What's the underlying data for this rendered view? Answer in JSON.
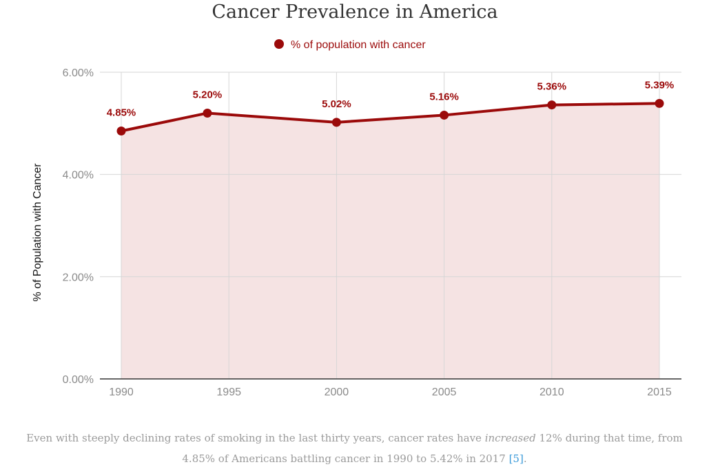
{
  "chart_data": {
    "type": "area",
    "title": "Cancer Prevalence in America",
    "ylabel": "% of Population with Cancer",
    "xlabel": "",
    "legend_position": "top",
    "grid": true,
    "x_tick_labels": [
      "1990",
      "1995",
      "2000",
      "2005",
      "2010",
      "2015"
    ],
    "x_ticks": [
      1990,
      1995,
      2000,
      2005,
      2010,
      2015
    ],
    "xlim": [
      1990,
      2015
    ],
    "y_tick_labels": [
      "0.00%",
      "2.00%",
      "4.00%",
      "6.00%"
    ],
    "y_ticks": [
      0,
      2,
      4,
      6
    ],
    "ylim": [
      0,
      6
    ],
    "series": [
      {
        "name": "% of population with cancer",
        "color": "#9b0a0a",
        "fill_color": "#f5e3e3",
        "x": [
          1990,
          1994,
          2000,
          2005,
          2010,
          2015
        ],
        "values": [
          4.85,
          5.2,
          5.02,
          5.16,
          5.36,
          5.39
        ],
        "labels": [
          "4.85%",
          "5.20%",
          "5.02%",
          "5.16%",
          "5.36%",
          "5.39%"
        ]
      }
    ]
  },
  "caption": {
    "part1": "Even with steeply declining rates of smoking in the last thirty years, cancer rates have ",
    "emphasis": "increased",
    "part2": " 12% during that time, from 4.85% of Americans battling cancer in 1990 to 5.42% in 2017 ",
    "ref_open": "[",
    "ref": "5",
    "ref_close": "]",
    "end": "."
  },
  "colors": {
    "series": "#9b0a0a",
    "area_fill": "#f5e3e3",
    "grid": "#d6d6d6",
    "axis": "#333333",
    "tick_text": "#8a8a8a",
    "link": "#3a9ad9"
  }
}
